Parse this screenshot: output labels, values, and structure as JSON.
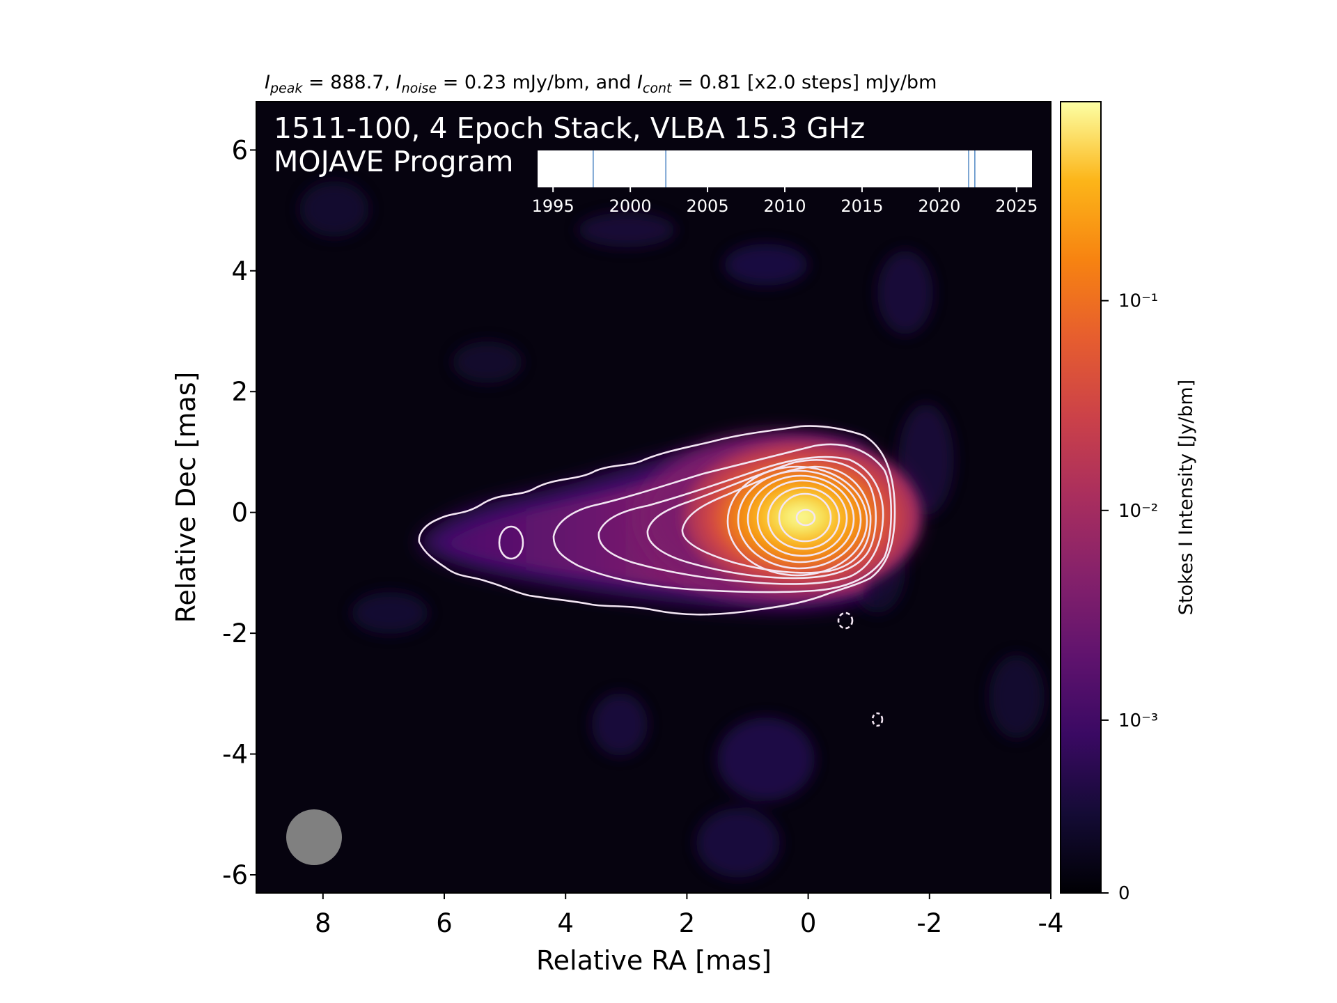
{
  "header_note": {
    "i_peak_symbol": "I",
    "i_peak_sub": "peak",
    "i_peak_value": " = 888.7, ",
    "i_noise_symbol": "I",
    "i_noise_sub": "noise",
    "i_noise_value": " = 0.23 mJy/bm, and ",
    "i_cont_symbol": "I",
    "i_cont_sub": "cont",
    "i_cont_value": " = 0.81 [x2.0 steps] mJy/bm"
  },
  "colors": {
    "colormap": "inferno",
    "contour": "#f3e6f3",
    "beam": "#808080",
    "epoch_line": "#5b8fc8",
    "panel_text": "#ffffff"
  },
  "chart_data": {
    "type": "heatmap",
    "title_line1": "1511-100, 4 Epoch Stack, VLBA 15.3 GHz",
    "title_line2": "MOJAVE Program",
    "xlabel": "Relative RA [mas]",
    "ylabel": "Relative Dec [mas]",
    "xlim": [
      9.1,
      -4.0
    ],
    "ylim": [
      -6.3,
      6.8
    ],
    "x_ticks": [
      8,
      6,
      4,
      2,
      0,
      -2,
      -4
    ],
    "x_tick_labels": [
      "8",
      "6",
      "4",
      "2",
      "0",
      "-2",
      "-4"
    ],
    "y_ticks": [
      6,
      4,
      2,
      0,
      -2,
      -4,
      -6
    ],
    "y_tick_labels": [
      "6",
      "4",
      "2",
      "0",
      "-2",
      "-4",
      "-6"
    ],
    "colorbar": {
      "label": "Stokes I Intensity [Jy/bm]",
      "scale": "log",
      "max": 0.8887,
      "ticks": [
        {
          "value": 0.1,
          "label": "10⁻¹"
        },
        {
          "value": 0.01,
          "label": "10⁻²"
        },
        {
          "value": 0.001,
          "label": "10⁻³"
        },
        {
          "value": 0,
          "label": "0"
        }
      ]
    },
    "peak_intensity_mJy": 888.7,
    "noise_mJy": 0.23,
    "lowest_contour_mJy": 0.81,
    "contour_step_factor": 2.0,
    "beam": {
      "x": 8.2,
      "y": -5.3,
      "major_mas": 0.93,
      "minor_mas": 0.93
    },
    "epoch_timeline": {
      "xlim": [
        1994,
        2026
      ],
      "tick_values": [
        1995,
        2000,
        2005,
        2010,
        2015,
        2020,
        2025
      ],
      "tick_labels": [
        "1995",
        "2000",
        "2005",
        "2010",
        "2015",
        "2020",
        "2025"
      ],
      "epochs": [
        1997.6,
        2002.3,
        2021.9,
        2022.3
      ]
    }
  }
}
